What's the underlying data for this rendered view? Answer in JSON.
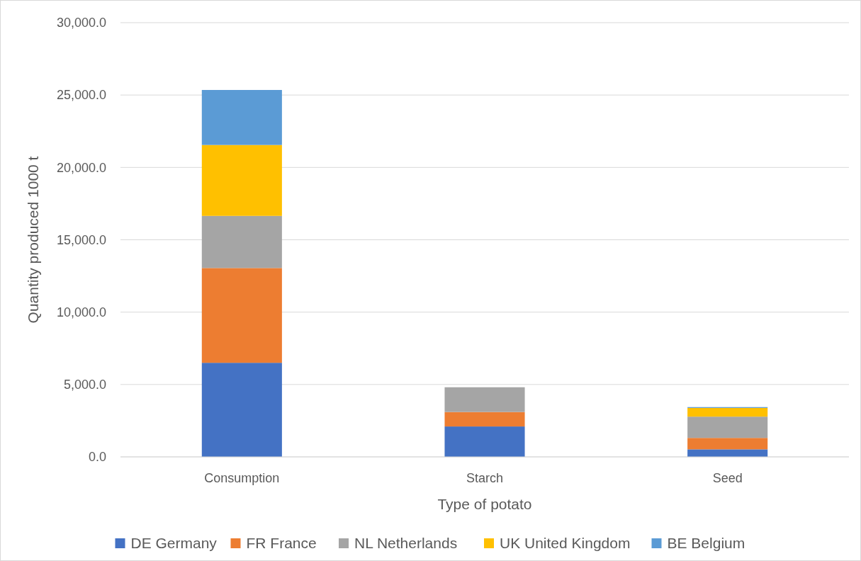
{
  "chart_data": {
    "type": "bar",
    "stacked": true,
    "xlabel": "Type of potato",
    "ylabel": "Quantity produced 1000 t",
    "categories": [
      "Consumption",
      "Starch",
      "Seed"
    ],
    "series": [
      {
        "name": "DE Germany",
        "color": "#4472c4",
        "values": [
          6500,
          2100,
          520
        ]
      },
      {
        "name": "FR France",
        "color": "#ed7d31",
        "values": [
          6550,
          1000,
          790
        ]
      },
      {
        "name": "NL Netherlands",
        "color": "#a5a5a5",
        "values": [
          3600,
          1710,
          1470
        ]
      },
      {
        "name": "UK United Kingdom",
        "color": "#ffc000",
        "values": [
          4900,
          null,
          600
        ]
      },
      {
        "name": "BE Belgium",
        "color": "#5b9bd5",
        "values": [
          3800,
          null,
          60
        ]
      }
    ],
    "ylim": [
      0,
      30000
    ],
    "yticks": [
      {
        "value": 0,
        "label": "0.0"
      },
      {
        "value": 5000,
        "label": "5,000.0"
      },
      {
        "value": 10000,
        "label": "10,000.0"
      },
      {
        "value": 15000,
        "label": "15,000.0"
      },
      {
        "value": 20000,
        "label": "20,000.0"
      },
      {
        "value": 25000,
        "label": "25,000.0"
      },
      {
        "value": 30000,
        "label": "30,000.0"
      }
    ],
    "grid": "y",
    "legend": "bottom"
  }
}
